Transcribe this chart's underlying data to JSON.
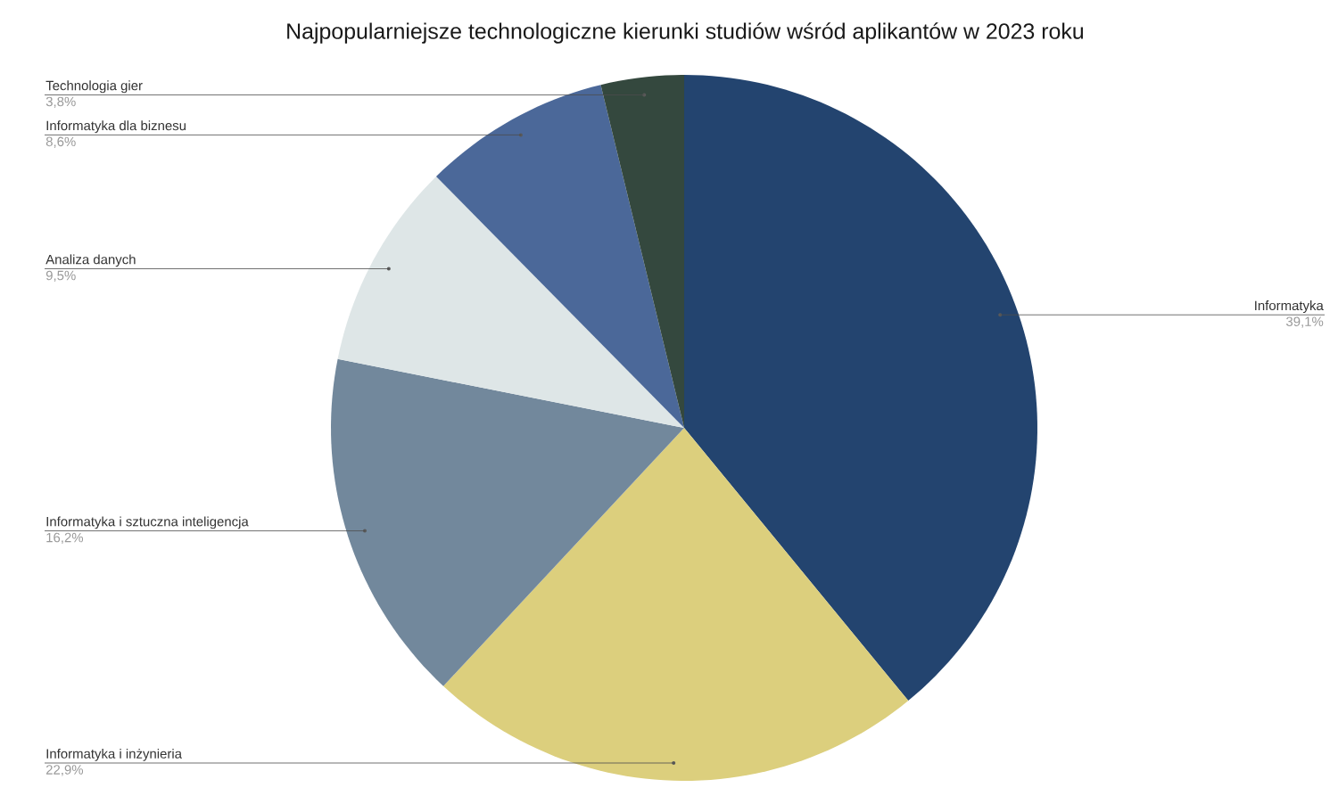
{
  "chart_data": {
    "type": "pie",
    "title": "Najpopularniejsze technologiczne kierunki studiów wśród aplikantów w 2023 roku",
    "categories": [
      "Informatyka",
      "Informatyka i inżynieria",
      "Informatyka i sztuczna inteligencja",
      "Analiza danych",
      "Informatyka dla biznesu",
      "Technologia gier"
    ],
    "values": [
      39.1,
      22.9,
      16.2,
      9.5,
      8.6,
      3.8
    ],
    "value_labels": [
      "39,1%",
      "22,9%",
      "16,2%",
      "9,5%",
      "8,6%",
      "3,8%"
    ],
    "colors": [
      "#23446f",
      "#dccf7d",
      "#72889c",
      "#dee6e7",
      "#4b6899",
      "#34483e"
    ]
  }
}
